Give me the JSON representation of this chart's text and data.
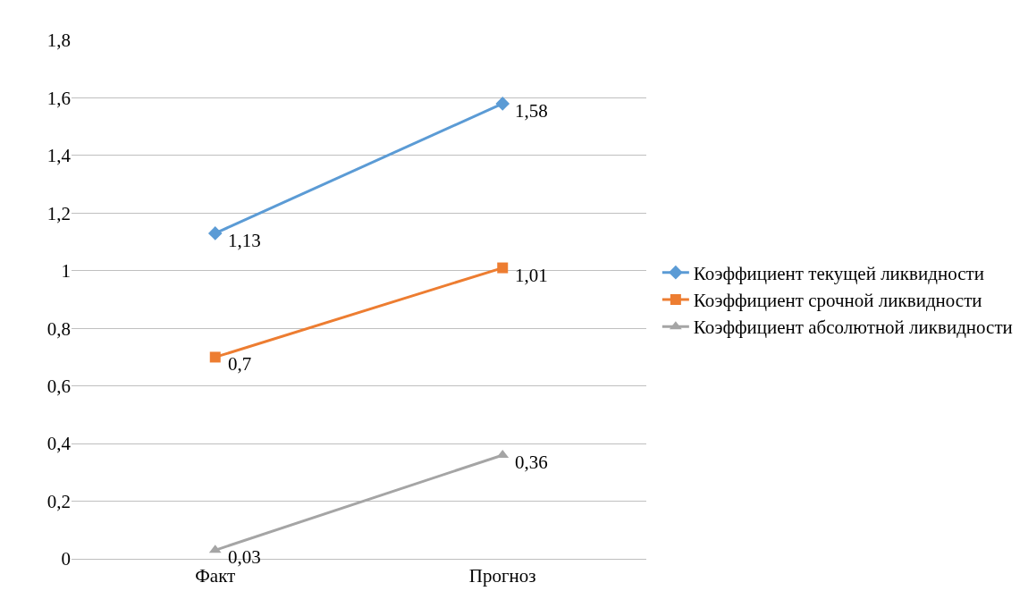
{
  "chart_data": {
    "type": "line",
    "categories": [
      "Факт",
      "Прогноз"
    ],
    "series": [
      {
        "name": "Коэффициент текущей ликвидности",
        "color": "#5b9bd5",
        "values": [
          1.13,
          1.58
        ],
        "value_labels": [
          "1,13",
          "1,58"
        ],
        "marker": "diamond"
      },
      {
        "name": "Коэффициент срочной ликвидности",
        "color": "#ed7d31",
        "values": [
          0.7,
          1.01
        ],
        "value_labels": [
          "0,7",
          "1,01"
        ],
        "marker": "square"
      },
      {
        "name": "Коэффициент абсолютной ликвидности",
        "color": "#a5a5a5",
        "values": [
          0.03,
          0.36
        ],
        "value_labels": [
          "0,03",
          "0,36"
        ],
        "marker": "triangle"
      }
    ],
    "ylim": [
      0,
      1.8
    ],
    "yticks": [
      0,
      {
        "value": 0.2,
        "label": "0,2"
      },
      {
        "value": 0.4,
        "label": "0,4"
      },
      {
        "value": 0.6,
        "label": "0,6"
      },
      {
        "value": 0.8,
        "label": "0,8"
      },
      1,
      {
        "value": 1.2,
        "label": "1,2"
      },
      {
        "value": 1.4,
        "label": "1,4"
      },
      {
        "value": 1.6,
        "label": "1,6"
      },
      {
        "value": 1.8,
        "label": "1,8"
      }
    ],
    "grid": "y",
    "legend": "right",
    "line_style": "solid"
  }
}
